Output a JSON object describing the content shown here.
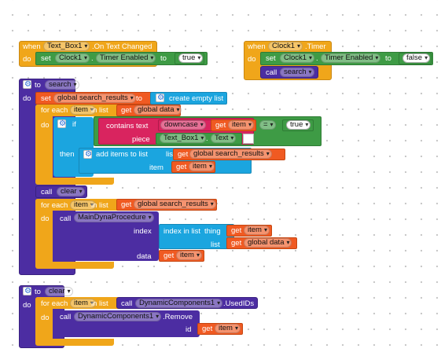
{
  "ev_text_changed": {
    "when": "when",
    "component": "Text_Box1",
    "event": ".On Text Changed",
    "do": "do",
    "set": "set",
    "target": "Clock1",
    "property": "Timer Enabled",
    "to": "to",
    "value": "true"
  },
  "ev_timer": {
    "when": "when",
    "component": "Clock1",
    "event": ".Timer",
    "do": "do",
    "set": "set",
    "target": "Clock1",
    "property": "Timer Enabled",
    "to": "to",
    "value": "false",
    "call": "call",
    "proc": "search"
  },
  "proc_search": {
    "to": "to",
    "name": "search",
    "do": "do",
    "set": "set",
    "var": "global search_results",
    "to2": "to",
    "create_empty_list": "create empty list",
    "for_each": "for each",
    "item": "item",
    "in_list": "in list",
    "get": "get",
    "global_data": "global data",
    "do2": "do",
    "if": "if",
    "contains_text": "contains text",
    "downcase": "downcase",
    "get_item": "item",
    "eq": "=",
    "true": "true",
    "piece": "piece",
    "text_box": "Text_Box1",
    "text_prop": "Text",
    "then": "then",
    "add_items": "add items to list",
    "list": "list",
    "search_results": "global search_results",
    "item_label": "item",
    "call_clear": "call",
    "clear": "clear",
    "for_each2": "for each",
    "in_list2": "in list",
    "do3": "do",
    "call_main": "call",
    "main_proc": "MainDynaProcedure",
    "index": "index",
    "index_in_list": "index in list",
    "thing": "thing",
    "list2": "list",
    "data": "data"
  },
  "proc_clear": {
    "to": "to",
    "name": "clear",
    "do": "do",
    "for_each": "for each",
    "item": "item",
    "in_list": "in list",
    "call": "call",
    "component": "DynamicComponents1",
    "used_ids": ".UsedIDs",
    "do2": "do",
    "call2": "call",
    "remove": ".Remove",
    "id": "id",
    "get": "get",
    "get_item": "item"
  },
  "colors": {
    "event": "#F0A61A",
    "procedure": "#4C2DA2",
    "list": "#1BA5DF",
    "setter": "#3E9B45",
    "variable": "#F05A22",
    "text": "#D9245F"
  }
}
